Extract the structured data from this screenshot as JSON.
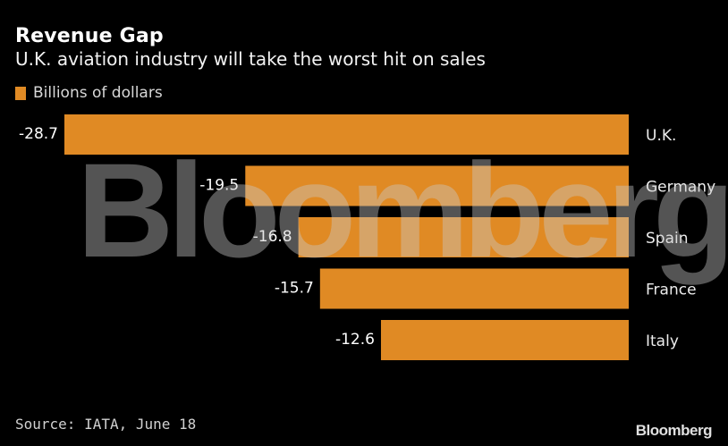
{
  "header": {
    "title": "Revenue Gap",
    "subtitle": "U.K. aviation industry will take the worst hit on sales"
  },
  "legend": {
    "label": "Billions of dollars",
    "color": "#E08A24"
  },
  "watermark": "Bloomberg",
  "footer": {
    "source": "Source: IATA, June 18",
    "brand": "Bloomberg"
  },
  "colors": {
    "background": "#000000",
    "bar": "#E08A24",
    "text": "#FFFFFF"
  },
  "chart_data": {
    "type": "bar",
    "orientation": "horizontal",
    "title": "Revenue Gap",
    "subtitle": "U.K. aviation industry will take the worst hit on sales",
    "xlabel": "",
    "ylabel": "",
    "categories": [
      "U.K.",
      "Germany",
      "Spain",
      "France",
      "Italy"
    ],
    "series": [
      {
        "name": "Billions of dollars",
        "values": [
          -28.7,
          -19.5,
          -16.8,
          -15.7,
          -12.6
        ],
        "color": "#E08A24"
      }
    ],
    "xlim": [
      -28.7,
      0
    ],
    "grid": false,
    "legend_position": "top-left",
    "data_labels": [
      "-28.7",
      "-19.5",
      "-16.8",
      "-15.7",
      "-12.6"
    ],
    "source": "Source: IATA, June 18"
  }
}
